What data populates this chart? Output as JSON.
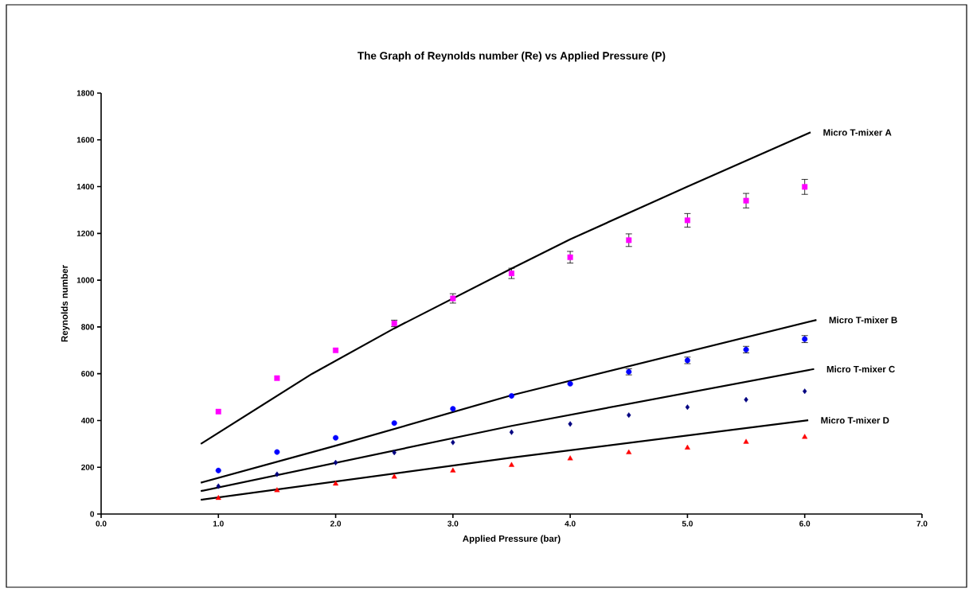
{
  "chart_data": {
    "type": "scatter",
    "title": "The Graph of Reynolds number (Re) vs Applied Pressure (P)",
    "xlabel": "Applied Pressure (bar)",
    "ylabel": "Reynolds number",
    "xlim": [
      0,
      7
    ],
    "ylim": [
      0,
      1800
    ],
    "xticks": [
      {
        "value": 0,
        "label": "0.0"
      },
      {
        "value": 1,
        "label": "1.0"
      },
      {
        "value": 2,
        "label": "2.0"
      },
      {
        "value": 3,
        "label": "3.0"
      },
      {
        "value": 4,
        "label": "4.0"
      },
      {
        "value": 5,
        "label": "5.0"
      },
      {
        "value": 6,
        "label": "6.0"
      },
      {
        "value": 7,
        "label": "7.0"
      }
    ],
    "yticks": [
      0,
      200,
      400,
      600,
      800,
      1000,
      1200,
      1400,
      1600,
      1800
    ],
    "series": [
      {
        "color": "#ff00ff",
        "marker": "square",
        "x": [
          1.0,
          1.5,
          2.0,
          2.5,
          3.0,
          3.5,
          4.0,
          4.5,
          5.0,
          5.5,
          6.0
        ],
        "values": [
          438,
          581,
          700,
          815,
          922,
          1029,
          1098,
          1171,
          1256,
          1340,
          1399
        ],
        "errors": [
          null,
          null,
          null,
          14,
          20,
          22,
          25,
          27,
          29,
          31,
          32
        ]
      },
      {
        "color": "#0000ff",
        "marker": "circle",
        "x": [
          1.0,
          1.5,
          2.0,
          2.5,
          3.0,
          3.5,
          4.0,
          4.5,
          5.0,
          5.5,
          6.0
        ],
        "values": [
          186,
          265,
          326,
          389,
          450,
          505,
          557,
          608,
          657,
          703,
          748
        ],
        "errors": [
          null,
          null,
          null,
          null,
          null,
          null,
          null,
          13,
          14,
          14,
          15
        ]
      },
      {
        "color": "#000080",
        "marker": "diamond",
        "x": [
          1.0,
          1.5,
          2.0,
          2.5,
          3.0,
          3.5,
          4.0,
          4.5,
          5.0,
          5.5,
          6.0
        ],
        "values": [
          119,
          170,
          220,
          263,
          306,
          350,
          385,
          423,
          457,
          489,
          525
        ]
      },
      {
        "color": "#ff0000",
        "marker": "triangle",
        "x": [
          1.0,
          1.5,
          2.0,
          2.5,
          3.0,
          3.5,
          4.0,
          4.5,
          5.0,
          5.5,
          6.0
        ],
        "values": [
          68,
          101,
          129,
          159,
          185,
          209,
          237,
          263,
          283,
          308,
          329
        ]
      },
      {
        "type": "line",
        "name": "Micro T-mixer A",
        "color": "#000000",
        "x": [
          0.85,
          1.8,
          2.5,
          3.5,
          4.0,
          5.0,
          6.05
        ],
        "values": [
          300,
          600,
          794,
          1050,
          1175,
          1400,
          1632
        ]
      },
      {
        "type": "line",
        "name": "Micro T-mixer B",
        "color": "#000000",
        "x": [
          0.85,
          2.0,
          3.5,
          6.1
        ],
        "values": [
          134,
          292,
          508,
          830
        ]
      },
      {
        "type": "line",
        "name": "Micro T-mixer C",
        "color": "#000000",
        "x": [
          0.85,
          3.5,
          6.08
        ],
        "values": [
          98,
          377,
          620
        ]
      },
      {
        "type": "line",
        "name": "Micro T-mixer D",
        "color": "#000000",
        "x": [
          0.85,
          3.5,
          6.03
        ],
        "values": [
          61,
          241,
          401
        ]
      }
    ]
  }
}
